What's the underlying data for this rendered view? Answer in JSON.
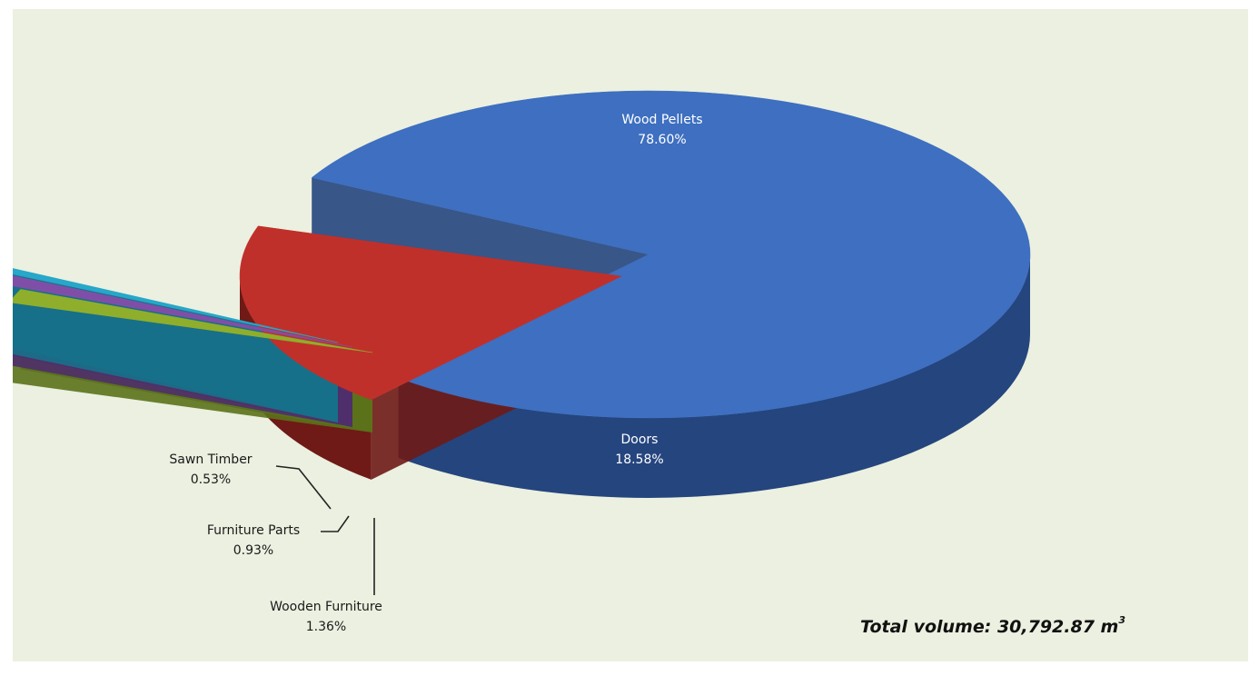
{
  "chart_data": {
    "type": "pie",
    "style": "3d-exploded",
    "slices": [
      {
        "label": "Wood Pellets",
        "value_label": "78.60%",
        "value": 78.6,
        "color": "#3e6fc0",
        "side_color": "#25457e"
      },
      {
        "label": "Doors",
        "value_label": "18.58%",
        "value": 18.58,
        "color": "#c0302a",
        "side_color": "#6f1a16"
      },
      {
        "label": "Wooden Furniture",
        "value_label": "1.36%",
        "value": 1.36,
        "color": "#8fae2b",
        "side_color": "#5b721b"
      },
      {
        "label": "Furniture Parts",
        "value_label": "0.93%",
        "value": 0.93,
        "color": "#7f4fa8",
        "side_color": "#4f2f6c"
      },
      {
        "label": "Sawn Timber",
        "value_label": "0.53%",
        "value": 0.53,
        "color": "#27a7c9",
        "side_color": "#17718a"
      }
    ],
    "annotation": {
      "prefix": "Total volume: 30,792.87 m",
      "superscript": "3"
    }
  }
}
